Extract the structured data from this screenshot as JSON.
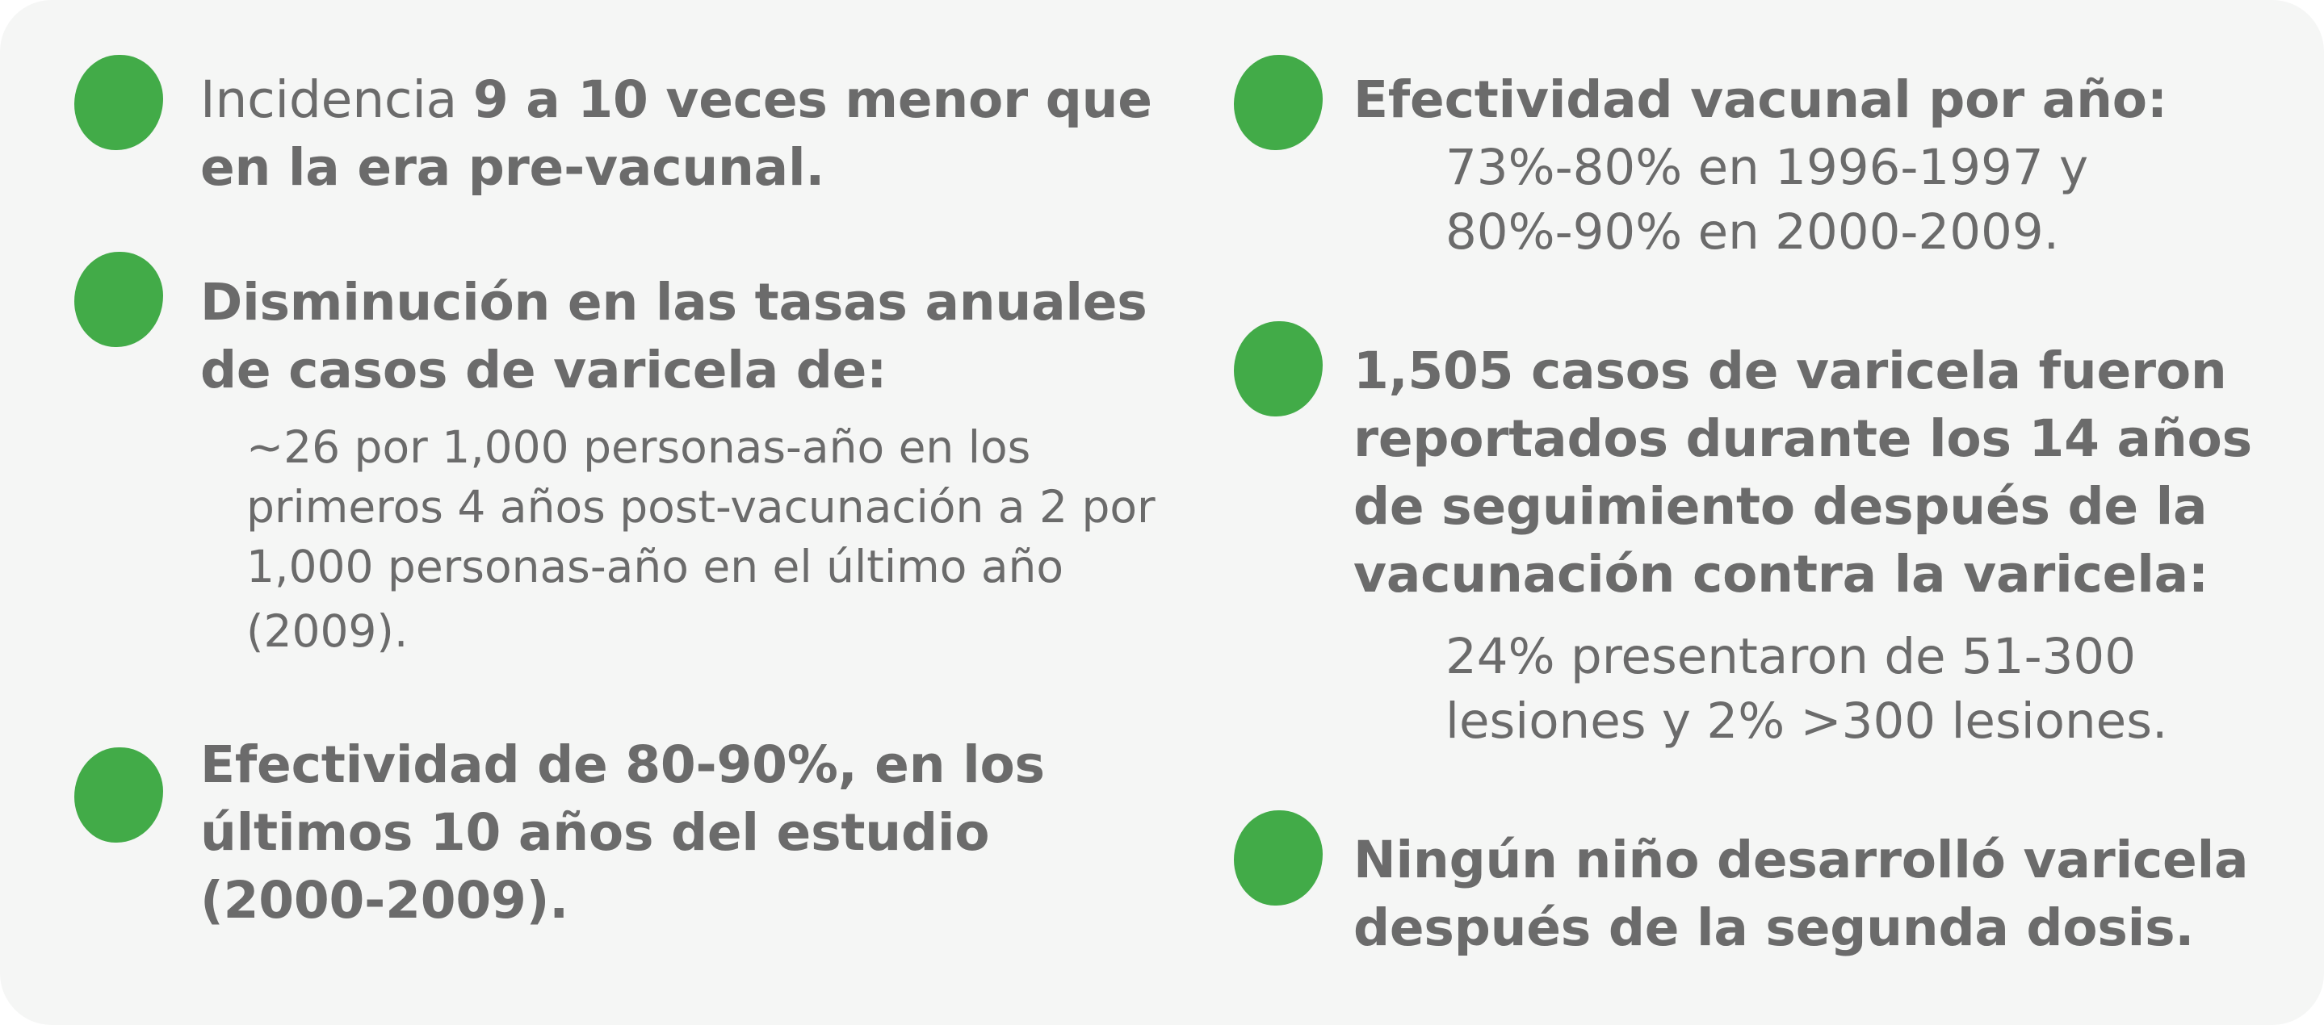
{
  "left_column": [
    {
      "lines": [
        {
          "light": "Incidencia ",
          "bold": "9 a 10 veces menor que"
        },
        {
          "light": "",
          "bold": "en la era pre-vacunal."
        }
      ]
    },
    {
      "lines": [
        {
          "bold": "Disminución en las tasas anuales"
        },
        {
          "bold": "de casos de varicela de:"
        }
      ],
      "detail": [
        "~26 por 1,000 personas-año en los",
        "primeros 4 años post-vacunación a 2 por",
        "1,000 personas-año en el último año",
        "(2009)."
      ]
    },
    {
      "lines": [
        {
          "bold": "Efectividad de 80-90%, en los"
        },
        {
          "bold": "últimos 10 años del estudio"
        },
        {
          "bold": "(2000-2009)."
        }
      ]
    }
  ],
  "right_column": [
    {
      "lines": [
        {
          "bold": "Efectividad vacunal por año:"
        }
      ],
      "detail": [
        "73%-80% en 1996-1997 y",
        "80%-90% en 2000-2009."
      ]
    },
    {
      "lines": [
        {
          "bold": "1,505 casos de varicela fueron"
        },
        {
          "bold": "reportados durante los 14 años"
        },
        {
          "bold": "de seguimiento después de la"
        },
        {
          "bold": "vacunación contra la varicela:"
        }
      ],
      "detail": [
        "24% presentaron de 51-300",
        "lesiones y 2% >300 lesiones."
      ]
    },
    {
      "lines": [
        {
          "bold": "Ningún niño desarrolló varicela"
        },
        {
          "bold": "después de la segunda dosis."
        }
      ]
    }
  ],
  "colors": {
    "bullet": "#42ab48",
    "text": "#6b6b6b",
    "background": "#f5f6f5"
  },
  "icons": {
    "bullet": "green-dot-icon"
  }
}
